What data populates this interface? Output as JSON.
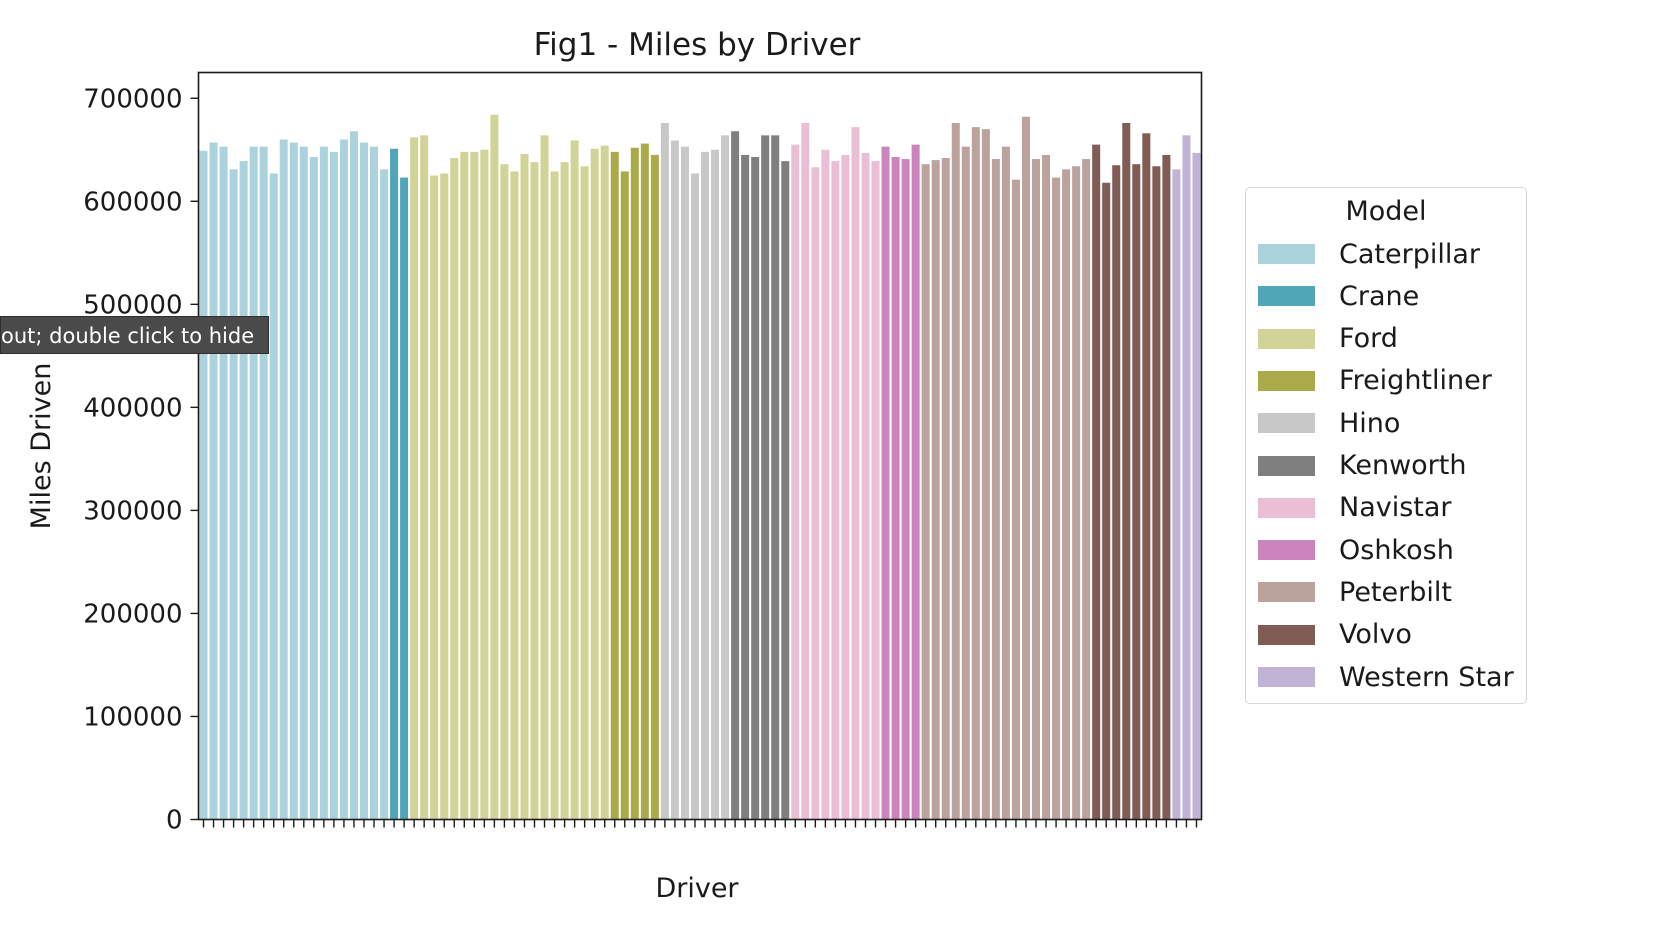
{
  "tooltip": {
    "text": "out; double click to hide"
  },
  "chart_data": {
    "type": "bar",
    "title": "Fig1 - Miles by Driver",
    "xlabel": "Driver",
    "ylabel": "Miles Driven",
    "ylim": [
      0,
      725000
    ],
    "yticks": [
      0,
      100000,
      200000,
      300000,
      400000,
      500000,
      600000,
      700000
    ],
    "ytick_labels": [
      "0",
      "100000",
      "200000",
      "300000",
      "400000",
      "500000",
      "600000",
      "700000"
    ],
    "x_tick_labels_note": "tick labels overlap and are illegible",
    "legend": {
      "title": "Model",
      "placement": "right, outside plot"
    },
    "models": [
      {
        "name": "Caterpillar",
        "color": "#acd3dd",
        "values": [
          649000,
          657000,
          653000,
          631000,
          639000,
          653000,
          653000,
          627000,
          660000,
          657000,
          653000,
          643000,
          653000,
          648000,
          660000,
          668000,
          657000,
          653000,
          631000
        ]
      },
      {
        "name": "Crane",
        "color": "#51a5b9",
        "values": [
          651000,
          623000
        ]
      },
      {
        "name": "Ford",
        "color": "#d1d397",
        "values": [
          662000,
          664000,
          625000,
          627000,
          642000,
          648000,
          648000,
          650000,
          684000,
          636000,
          629000,
          646000,
          638000,
          664000,
          629000,
          638000,
          659000,
          634000,
          651000,
          654000
        ]
      },
      {
        "name": "Freightliner",
        "color": "#abaa4a",
        "values": [
          648000,
          629000,
          652000,
          656000,
          645000
        ]
      },
      {
        "name": "Hino",
        "color": "#c8c8c8",
        "values": [
          676000,
          659000,
          653000,
          627000,
          648000,
          650000,
          664000
        ]
      },
      {
        "name": "Kenworth",
        "color": "#7f7f7f",
        "values": [
          668000,
          645000,
          643000,
          664000,
          664000,
          639000
        ]
      },
      {
        "name": "Navistar",
        "color": "#eabfd5",
        "values": [
          655000,
          676000,
          633000,
          650000,
          639000,
          645000,
          672000,
          647000,
          639000
        ]
      },
      {
        "name": "Oshkosh",
        "color": "#cc84bd",
        "values": [
          653000,
          643000,
          641000,
          655000
        ]
      },
      {
        "name": "Peterbilt",
        "color": "#bca29c",
        "values": [
          636000,
          640000,
          642000,
          676000,
          653000,
          672000,
          670000,
          641000,
          653000,
          621000,
          682000,
          641000,
          645000,
          623000,
          631000,
          634000,
          641000
        ]
      },
      {
        "name": "Volvo",
        "color": "#815c55",
        "values": [
          655000,
          618000,
          635000,
          676000,
          636000,
          666000,
          634000,
          645000
        ]
      },
      {
        "name": "Western Star",
        "color": "#c0b3d5",
        "values": [
          631000,
          664000,
          647000
        ]
      }
    ]
  }
}
